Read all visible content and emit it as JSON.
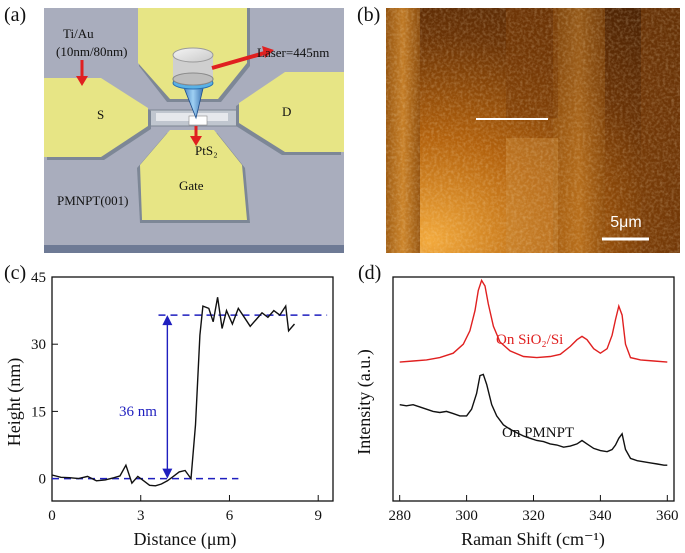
{
  "panels": {
    "a": {
      "label": "(a)",
      "layer_text": [
        "Ti/Au",
        "(10nm/80nm)"
      ],
      "source": "S",
      "drain": "D",
      "gate": "Gate",
      "laser": "Laser=445nm",
      "material": "PtS₂",
      "substrate": "PMNPT(001)",
      "colors": {
        "substrate": "#a9adbd",
        "electrode": "#e7e585",
        "arrow": "#e02020"
      }
    },
    "b": {
      "label": "(b)",
      "scale_bar": "5μm"
    },
    "c": {
      "label": "(c)"
    },
    "d": {
      "label": "(d)"
    }
  },
  "chart_data": [
    {
      "panel": "c",
      "type": "line",
      "xlabel": "Distance (μm)",
      "ylabel": "Height (nm)",
      "xlim": [
        0,
        9.5
      ],
      "ylim": [
        -5,
        45
      ],
      "xticks": [
        0,
        3,
        6,
        9
      ],
      "yticks": [
        0,
        15,
        30,
        45
      ],
      "annotation": "36 nm",
      "reference_levels": [
        0,
        36.5
      ],
      "series": [
        {
          "color": "#111111",
          "x": [
            0,
            0.3,
            0.6,
            0.9,
            1.2,
            1.5,
            1.8,
            2.1,
            2.3,
            2.5,
            2.7,
            2.9,
            3.1,
            3.3,
            3.5,
            3.7,
            3.9,
            4.1,
            4.3,
            4.5,
            4.7,
            4.85,
            5.0,
            5.1,
            5.3,
            5.45,
            5.6,
            5.75,
            5.9,
            6.1,
            6.3,
            6.5,
            6.7,
            6.9,
            7.1,
            7.3,
            7.5,
            7.7,
            7.9,
            8.0,
            8.2
          ],
          "y": [
            0.8,
            0.3,
            0.2,
            0,
            0.5,
            -0.5,
            -0.3,
            0.2,
            0.6,
            3,
            -1,
            0.5,
            -0.5,
            -1.5,
            -1.6,
            -1.2,
            -0.5,
            0.5,
            1.5,
            1.8,
            0,
            12,
            32,
            38.5,
            38,
            35,
            40.5,
            33.5,
            37.5,
            34.5,
            38,
            36,
            34,
            35.5,
            37,
            36,
            37.5,
            36.5,
            38.5,
            33,
            34.5
          ]
        }
      ]
    },
    {
      "panel": "d",
      "type": "line",
      "xlabel": "Raman Shift (cm⁻¹)",
      "ylabel": "Intensity (a.u.)",
      "xlim": [
        278,
        362
      ],
      "xticks": [
        280,
        300,
        320,
        340,
        360
      ],
      "series": [
        {
          "name": "On SiO₂/Si",
          "color": "#e02020",
          "x": [
            280,
            284,
            288,
            292,
            296,
            299,
            301,
            302.5,
            303.5,
            304.5,
            305.5,
            306.5,
            308,
            310,
            313,
            317,
            321,
            325,
            328,
            331,
            333,
            334.5,
            336,
            338,
            340,
            342,
            343.5,
            344.5,
            345.5,
            346.5,
            347.5,
            349,
            352,
            356,
            360
          ],
          "y": [
            0.62,
            0.625,
            0.63,
            0.64,
            0.66,
            0.7,
            0.76,
            0.85,
            0.94,
            0.985,
            0.96,
            0.88,
            0.78,
            0.71,
            0.67,
            0.645,
            0.64,
            0.645,
            0.655,
            0.69,
            0.72,
            0.735,
            0.72,
            0.68,
            0.66,
            0.68,
            0.74,
            0.81,
            0.87,
            0.83,
            0.7,
            0.64,
            0.63,
            0.625,
            0.62
          ]
        },
        {
          "name": "On PMNPT",
          "color": "#111111",
          "x": [
            280,
            282,
            284,
            286,
            288,
            290,
            292,
            294,
            296,
            298,
            300,
            301.5,
            303,
            304,
            305,
            306,
            307.5,
            309,
            311,
            313,
            315,
            317,
            319,
            321,
            323,
            325,
            327,
            329,
            331,
            333,
            334.5,
            336,
            338,
            340,
            342,
            343.5,
            344.5,
            345.5,
            346.5,
            347.5,
            349,
            351,
            353,
            355,
            357,
            359,
            360
          ],
          "y": [
            0.43,
            0.425,
            0.43,
            0.42,
            0.41,
            0.4,
            0.395,
            0.4,
            0.39,
            0.38,
            0.38,
            0.41,
            0.48,
            0.56,
            0.565,
            0.52,
            0.43,
            0.38,
            0.34,
            0.32,
            0.305,
            0.29,
            0.28,
            0.27,
            0.265,
            0.255,
            0.25,
            0.24,
            0.245,
            0.255,
            0.27,
            0.255,
            0.235,
            0.225,
            0.22,
            0.23,
            0.25,
            0.28,
            0.3,
            0.23,
            0.19,
            0.18,
            0.175,
            0.17,
            0.165,
            0.16,
            0.16
          ]
        }
      ]
    }
  ]
}
